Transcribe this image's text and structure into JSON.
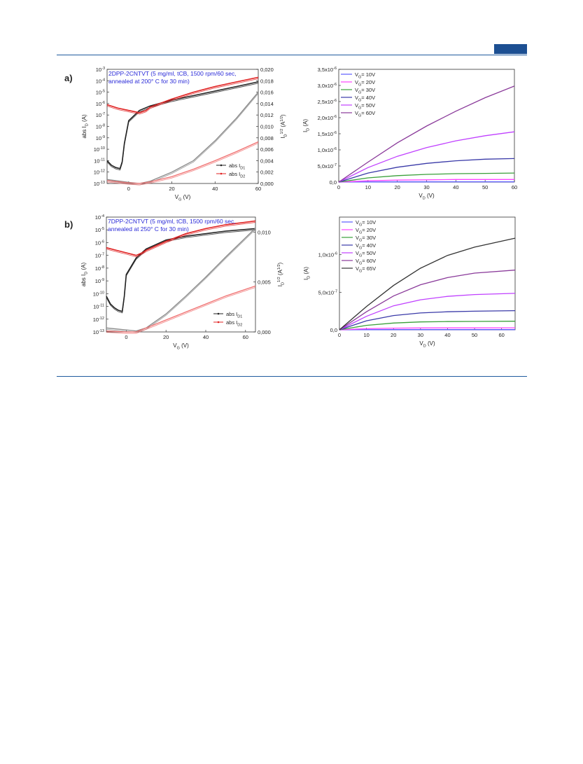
{
  "page": {
    "panel_labels": [
      "a)",
      "b)"
    ],
    "accent_color": "#1c4f92"
  },
  "chart_data": [
    {
      "panel": "a)",
      "type": "line",
      "annotation": [
        "2DPP-2CNTVT (5 mg/ml, tCB, 1500 rpm/60 sec,",
        "annealed at 200° C for 30 min)"
      ],
      "xlabel": "V_G (V)",
      "ylabel": "abs I_D (A)",
      "y2label": "I_D^1/2 (A^1/2)",
      "xlim": [
        -10,
        60
      ],
      "xticks": [
        "0",
        "20",
        "40",
        "60"
      ],
      "ylim_log_exp": [
        -13,
        -3
      ],
      "yticks": [
        "10-3",
        "10-4",
        "10-5",
        "10-6",
        "10-7",
        "10-8",
        "10-9",
        "10-10",
        "10-11",
        "10-12",
        "10-13"
      ],
      "y2lim": [
        0,
        0.02
      ],
      "y2ticks": [
        "0,020",
        "0,018",
        "0,016",
        "0,014",
        "0,012",
        "0,010",
        "0,008",
        "0,006",
        "0,004",
        "0,002",
        "0,000"
      ],
      "legend": [
        "abs I_D1",
        "abs I_D2"
      ],
      "legend_position": "bottom-right",
      "series": [
        {
          "name": "abs I_D1",
          "axis": "log",
          "color": "#222222",
          "x": [
            -10,
            -8,
            -6,
            -4,
            -3,
            -2,
            0,
            5,
            10,
            20,
            30,
            40,
            50,
            60
          ],
          "y_exp": [
            -11.0,
            -11.4,
            -11.6,
            -11.7,
            -11.1,
            -9.5,
            -7.5,
            -6.6,
            -6.2,
            -5.7,
            -5.3,
            -4.9,
            -4.5,
            -4.1
          ]
        },
        {
          "name": "abs I_D2",
          "axis": "log",
          "color": "#e02020",
          "x": [
            -10,
            -5,
            0,
            5,
            8,
            10,
            20,
            30,
            40,
            50,
            60
          ],
          "y_exp": [
            -6.1,
            -6.4,
            -6.6,
            -6.8,
            -6.6,
            -6.3,
            -5.6,
            -5.0,
            -4.5,
            -4.1,
            -3.7
          ]
        },
        {
          "name": "sqrt I_D1",
          "axis": "linear",
          "color": "#888888",
          "x": [
            -10,
            0,
            5,
            10,
            20,
            30,
            40,
            50,
            60
          ],
          "y": [
            0.0007,
            0.0002,
            0.0,
            0.0004,
            0.002,
            0.004,
            0.0075,
            0.0115,
            0.016
          ]
        },
        {
          "name": "sqrt I_D2",
          "axis": "linear",
          "color": "#f07070",
          "x": [
            -10,
            0,
            5,
            10,
            20,
            30,
            40,
            50,
            60
          ],
          "y": [
            0.0005,
            0.0001,
            0.0,
            0.0003,
            0.0012,
            0.0025,
            0.004,
            0.0056,
            0.0073
          ]
        }
      ]
    },
    {
      "panel": "a)",
      "type": "line",
      "xlabel": "V_D (V)",
      "ylabel": "I_D (A)",
      "xlim": [
        0,
        60
      ],
      "xticks": [
        "0",
        "10",
        "20",
        "30",
        "40",
        "50",
        "60"
      ],
      "ylim": [
        0,
        3.5e-06
      ],
      "yticks": [
        "0,0",
        "5,0x10-7",
        "1,0x10-6",
        "1,5x10-6",
        "2,0x10-6",
        "2,5x10-6",
        "3,0x10-6",
        "3,5x10-6"
      ],
      "legend": [
        "V_G= 10V",
        "V_G= 20V",
        "V_G= 30V",
        "V_G= 40V",
        "V_G= 50V",
        "V_G= 60V"
      ],
      "legend_position": "top-left",
      "series": [
        {
          "name": "V_G= 10V",
          "color": "#5b5bff",
          "x": [
            0,
            10,
            20,
            30,
            40,
            50,
            60
          ],
          "y": [
            0,
            4e-09,
            6e-09,
            7e-09,
            8e-09,
            8e-09,
            8e-09
          ]
        },
        {
          "name": "V_G= 20V",
          "color": "#ff44ff",
          "x": [
            0,
            10,
            20,
            30,
            40,
            50,
            60
          ],
          "y": [
            0,
            4e-08,
            6e-08,
            7e-08,
            8e-08,
            8e-08,
            8e-08
          ]
        },
        {
          "name": "V_G= 30V",
          "color": "#3aa03a",
          "x": [
            0,
            10,
            20,
            30,
            40,
            50,
            60
          ],
          "y": [
            0,
            1.3e-07,
            2e-07,
            2.4e-07,
            2.6e-07,
            2.7e-07,
            2.8e-07
          ]
        },
        {
          "name": "V_G= 40V",
          "color": "#3a3aa8",
          "x": [
            0,
            10,
            20,
            30,
            40,
            50,
            60
          ],
          "y": [
            0,
            2.8e-07,
            4.6e-07,
            5.8e-07,
            6.6e-07,
            7.1e-07,
            7.3e-07
          ]
        },
        {
          "name": "V_G= 50V",
          "color": "#c040ff",
          "x": [
            0,
            10,
            20,
            30,
            40,
            50,
            60
          ],
          "y": [
            0,
            4.5e-07,
            8e-07,
            1.07e-06,
            1.28e-06,
            1.44e-06,
            1.56e-06
          ]
        },
        {
          "name": "V_G= 60V",
          "color": "#8a3a9a",
          "x": [
            0,
            10,
            20,
            30,
            40,
            50,
            60
          ],
          "y": [
            0,
            6.2e-07,
            1.22e-06,
            1.74e-06,
            2.2e-06,
            2.62e-06,
            2.98e-06
          ]
        }
      ]
    },
    {
      "panel": "b)",
      "type": "line",
      "annotation": [
        "7DPP-2CNTVT (5 mg/ml, tCB, 1500 rpm/60 sec,",
        "annealed at 250° C for 30 min)"
      ],
      "xlabel": "V_G (V)",
      "ylabel": "abs I_D (A)",
      "y2label": "I_D^1/2 (A^1/2)",
      "xlim": [
        -10,
        65
      ],
      "xticks": [
        "0",
        "20",
        "40",
        "60"
      ],
      "ylim_log_exp": [
        -13,
        -4
      ],
      "yticks": [
        "10-4",
        "10-5",
        "10-6",
        "10-7",
        "10-8",
        "10-9",
        "10-10",
        "10-11",
        "10-12",
        "10-13"
      ],
      "y2lim": [
        0,
        0.0115
      ],
      "y2ticks": [
        "0,010",
        "0,005",
        "0,000"
      ],
      "legend": [
        "abs I_D1",
        "abs I_D2"
      ],
      "legend_position": "bottom-right",
      "series": [
        {
          "name": "abs I_D1",
          "axis": "log",
          "color": "#222222",
          "x": [
            -10,
            -8,
            -6,
            -4,
            -2,
            -1,
            0,
            5,
            10,
            20,
            30,
            40,
            50,
            65
          ],
          "y_exp": [
            -10.2,
            -10.8,
            -11.1,
            -11.3,
            -11.4,
            -10.2,
            -8.5,
            -7.2,
            -6.5,
            -5.8,
            -5.5,
            -5.3,
            -5.1,
            -4.9
          ]
        },
        {
          "name": "abs I_D2",
          "axis": "log",
          "color": "#e02020",
          "x": [
            -10,
            -5,
            0,
            5,
            8,
            10,
            20,
            30,
            40,
            50,
            65
          ],
          "y_exp": [
            -6.4,
            -6.6,
            -6.8,
            -7.0,
            -6.8,
            -6.6,
            -5.9,
            -5.3,
            -4.9,
            -4.6,
            -4.3
          ]
        },
        {
          "name": "sqrt I_D1",
          "axis": "linear",
          "color": "#888888",
          "x": [
            -10,
            0,
            5,
            10,
            20,
            30,
            40,
            50,
            65
          ],
          "y": [
            0.0004,
            0.0002,
            0.0001,
            0.0004,
            0.0018,
            0.0036,
            0.0055,
            0.0075,
            0.0104
          ]
        },
        {
          "name": "sqrt I_D2",
          "axis": "linear",
          "color": "#f07070",
          "x": [
            -10,
            0,
            5,
            10,
            20,
            30,
            40,
            50,
            65
          ],
          "y": [
            0.0001,
            0.0,
            0.0,
            0.0004,
            0.0012,
            0.002,
            0.0028,
            0.0036,
            0.0046
          ]
        }
      ]
    },
    {
      "panel": "b)",
      "type": "line",
      "xlabel": "V_D (V)",
      "ylabel": "I_D (A)",
      "xlim": [
        0,
        65
      ],
      "xticks": [
        "0",
        "10",
        "20",
        "30",
        "40",
        "50",
        "60"
      ],
      "ylim": [
        0,
        1.5e-06
      ],
      "yticks": [
        "0,0",
        "5,0x10-7",
        "1,0x10-6"
      ],
      "legend": [
        "V_G= 10V",
        "V_G= 20V",
        "V_G= 30V",
        "V_G= 40V",
        "V_G= 50V",
        "V_G= 60V",
        "V_G= 65V"
      ],
      "legend_position": "top-left",
      "series": [
        {
          "name": "V_G= 10V",
          "color": "#5b5bff",
          "x": [
            0,
            10,
            20,
            30,
            40,
            50,
            65
          ],
          "y": [
            0,
            2e-09,
            3e-09,
            3e-09,
            3e-09,
            3e-09,
            3e-09
          ]
        },
        {
          "name": "V_G= 20V",
          "color": "#ff44ff",
          "x": [
            0,
            10,
            20,
            30,
            40,
            50,
            65
          ],
          "y": [
            0,
            1.5e-08,
            2.2e-08,
            2.5e-08,
            2.6e-08,
            2.6e-08,
            2.7e-08
          ]
        },
        {
          "name": "V_G= 30V",
          "color": "#3aa03a",
          "x": [
            0,
            10,
            20,
            30,
            40,
            50,
            65
          ],
          "y": [
            0,
            6e-08,
            9e-08,
            1.05e-07,
            1.1e-07,
            1.12e-07,
            1.15e-07
          ]
        },
        {
          "name": "V_G= 40V",
          "color": "#3a3aa8",
          "x": [
            0,
            10,
            20,
            30,
            40,
            50,
            65
          ],
          "y": [
            0,
            1.2e-07,
            1.9e-07,
            2.25e-07,
            2.4e-07,
            2.48e-07,
            2.55e-07
          ]
        },
        {
          "name": "V_G= 50V",
          "color": "#c040ff",
          "x": [
            0,
            10,
            20,
            30,
            40,
            50,
            65
          ],
          "y": [
            0,
            1.8e-07,
            3.2e-07,
            4e-07,
            4.45e-07,
            4.7e-07,
            4.85e-07
          ]
        },
        {
          "name": "V_G= 60V",
          "color": "#8a3a9a",
          "x": [
            0,
            10,
            20,
            30,
            40,
            50,
            65
          ],
          "y": [
            0,
            2.4e-07,
            4.5e-07,
            6e-07,
            6.95e-07,
            7.55e-07,
            7.95e-07
          ]
        },
        {
          "name": "V_G= 65V",
          "color": "#333333",
          "x": [
            0,
            10,
            20,
            30,
            40,
            50,
            65
          ],
          "y": [
            0,
            3.1e-07,
            5.9e-07,
            8.2e-07,
            9.9e-07,
            1.1e-06,
            1.22e-06
          ]
        }
      ]
    }
  ]
}
